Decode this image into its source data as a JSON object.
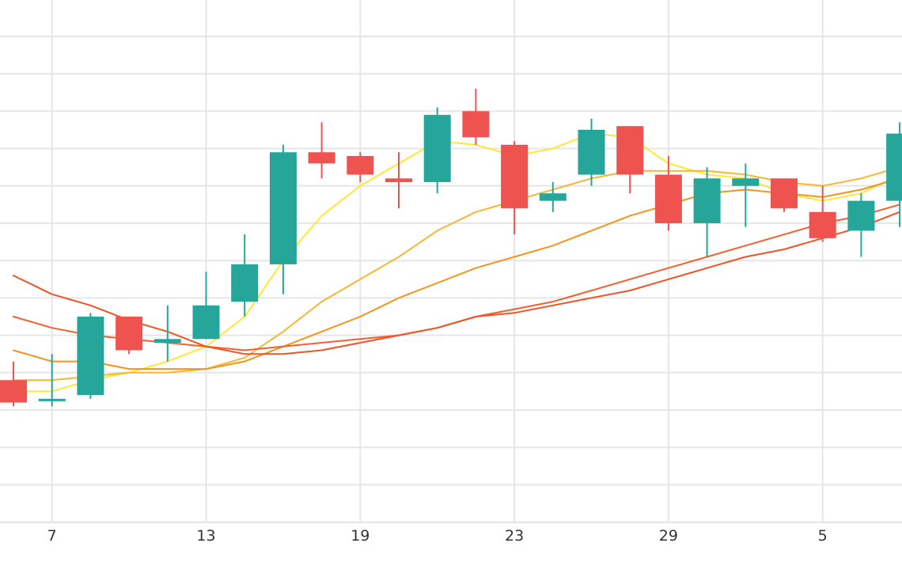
{
  "chart_data": {
    "type": "candlestick",
    "title": "",
    "xlabel": "",
    "ylabel": "",
    "grid": true,
    "y_gridlines": [
      114.5,
      113.5,
      112.5,
      111.5,
      110.5,
      109.5,
      108.5,
      107.5,
      106.5,
      105.5,
      104.5,
      103.5,
      102.5,
      101.5
    ],
    "x_tick_labels": [
      {
        "label": "7",
        "index": 1
      },
      {
        "label": "13",
        "index": 5
      },
      {
        "label": "19",
        "index": 9
      },
      {
        "label": "23",
        "index": 13
      },
      {
        "label": "29",
        "index": 17
      },
      {
        "label": "5",
        "index": 21
      }
    ],
    "candles": [
      {
        "open": 105.3,
        "high": 105.8,
        "low": 104.6,
        "close": 104.7
      },
      {
        "open": 104.8,
        "high": 106.0,
        "low": 104.6,
        "close": 104.8
      },
      {
        "open": 104.9,
        "high": 107.1,
        "low": 104.8,
        "close": 107.0
      },
      {
        "open": 107.0,
        "high": 107.0,
        "low": 106.0,
        "close": 106.1
      },
      {
        "open": 106.3,
        "high": 107.3,
        "low": 105.8,
        "close": 106.4
      },
      {
        "open": 106.4,
        "high": 108.2,
        "low": 106.4,
        "close": 107.3
      },
      {
        "open": 107.4,
        "high": 109.2,
        "low": 107.0,
        "close": 108.4
      },
      {
        "open": 108.4,
        "high": 111.6,
        "low": 107.6,
        "close": 111.4
      },
      {
        "open": 111.4,
        "high": 112.2,
        "low": 110.7,
        "close": 111.1
      },
      {
        "open": 111.3,
        "high": 111.4,
        "low": 110.6,
        "close": 110.8
      },
      {
        "open": 110.7,
        "high": 111.4,
        "low": 109.9,
        "close": 110.6
      },
      {
        "open": 110.6,
        "high": 112.6,
        "low": 110.3,
        "close": 112.4
      },
      {
        "open": 112.5,
        "high": 113.1,
        "low": 111.6,
        "close": 111.8
      },
      {
        "open": 111.6,
        "high": 111.7,
        "low": 109.2,
        "close": 109.9
      },
      {
        "open": 110.1,
        "high": 110.6,
        "low": 109.8,
        "close": 110.3
      },
      {
        "open": 110.8,
        "high": 112.3,
        "low": 110.5,
        "close": 112.0
      },
      {
        "open": 112.1,
        "high": 112.1,
        "low": 110.3,
        "close": 110.8
      },
      {
        "open": 110.8,
        "high": 111.3,
        "low": 109.3,
        "close": 109.5
      },
      {
        "open": 109.5,
        "high": 111.0,
        "low": 108.6,
        "close": 110.7
      },
      {
        "open": 110.5,
        "high": 111.1,
        "low": 109.4,
        "close": 110.7
      },
      {
        "open": 110.7,
        "high": 110.7,
        "low": 109.8,
        "close": 109.9
      },
      {
        "open": 109.8,
        "high": 110.5,
        "low": 109.0,
        "close": 109.1
      },
      {
        "open": 109.3,
        "high": 110.3,
        "low": 108.6,
        "close": 110.1
      },
      {
        "open": 110.1,
        "high": 112.2,
        "low": 109.4,
        "close": 111.9
      }
    ],
    "moving_averages": [
      {
        "color": "#ffe835",
        "values": [
          105.0,
          105.0,
          105.3,
          105.5,
          105.8,
          106.2,
          107.0,
          108.5,
          109.7,
          110.5,
          111.1,
          111.7,
          111.6,
          111.3,
          111.5,
          111.9,
          111.8,
          111.1,
          110.8,
          110.7,
          110.3,
          110.1,
          110.3,
          110.8
        ]
      },
      {
        "color": "#f7b733",
        "values": [
          105.3,
          105.3,
          105.4,
          105.5,
          105.5,
          105.6,
          105.9,
          106.6,
          107.4,
          108.0,
          108.6,
          109.3,
          109.8,
          110.1,
          110.4,
          110.7,
          110.9,
          110.9,
          110.9,
          110.8,
          110.6,
          110.5,
          110.7,
          111.0
        ]
      },
      {
        "color": "#f7931a",
        "values": [
          106.1,
          105.8,
          105.8,
          105.6,
          105.6,
          105.6,
          105.8,
          106.2,
          106.6,
          107.0,
          107.5,
          107.9,
          108.3,
          108.6,
          108.9,
          109.3,
          109.7,
          110.0,
          110.3,
          110.4,
          110.3,
          110.2,
          110.4,
          110.7
        ]
      },
      {
        "color": "#f2602e",
        "values": [
          107.0,
          106.7,
          106.5,
          106.4,
          106.3,
          106.2,
          106.1,
          106.2,
          106.3,
          106.4,
          106.5,
          106.7,
          107.0,
          107.2,
          107.4,
          107.7,
          108.0,
          108.3,
          108.6,
          108.9,
          109.2,
          109.5,
          109.7,
          110.0
        ]
      },
      {
        "color": "#f05325",
        "values": [
          108.1,
          107.6,
          107.3,
          106.9,
          106.6,
          106.2,
          106.0,
          106.0,
          106.1,
          106.3,
          106.5,
          106.7,
          107.0,
          107.1,
          107.3,
          107.5,
          107.7,
          108.0,
          108.3,
          108.6,
          108.8,
          109.1,
          109.4,
          109.8
        ]
      }
    ],
    "colors": {
      "up": "#26a69a",
      "down": "#ef5350",
      "grid": "#e6e6e6",
      "axis_text": "#333333"
    }
  }
}
